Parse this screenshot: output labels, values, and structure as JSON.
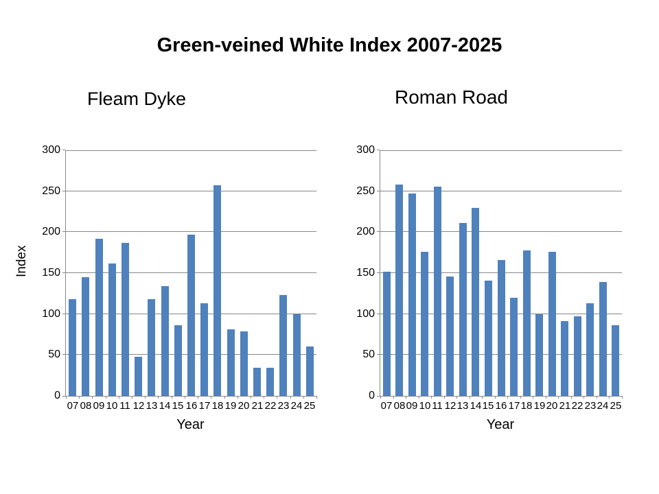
{
  "title": "Green-veined White Index 2007-2025",
  "colors": {
    "bar": "#4F81BD",
    "gridline": "#878787",
    "axis": "#878787",
    "text": "#000000",
    "background": "#FFFFFF"
  },
  "chart_data": [
    {
      "type": "bar",
      "title": "Fleam Dyke",
      "categories": [
        "07",
        "08",
        "09",
        "10",
        "11",
        "12",
        "13",
        "14",
        "15",
        "16",
        "17",
        "18",
        "19",
        "20",
        "21",
        "22",
        "23",
        "24",
        "25"
      ],
      "values": [
        118,
        145,
        192,
        162,
        187,
        48,
        118,
        134,
        86,
        197,
        113,
        257,
        81,
        79,
        34,
        34,
        123,
        100,
        60
      ],
      "xlabel": "Year",
      "ylabel": "Index",
      "ylim": [
        0,
        300
      ],
      "yticks": [
        0,
        50,
        100,
        150,
        200,
        250,
        300
      ],
      "grid": true,
      "legend": "none",
      "bar_color": "#4F81BD"
    },
    {
      "type": "bar",
      "title": "Roman Road",
      "categories": [
        "07",
        "08",
        "09",
        "10",
        "11",
        "12",
        "13",
        "14",
        "15",
        "16",
        "17",
        "18",
        "19",
        "20",
        "21",
        "22",
        "23",
        "24",
        "25"
      ],
      "values": [
        152,
        258,
        247,
        176,
        256,
        146,
        211,
        230,
        141,
        166,
        120,
        178,
        100,
        176,
        91,
        97,
        113,
        139,
        86
      ],
      "xlabel": "Year",
      "ylabel": "",
      "ylim": [
        0,
        300
      ],
      "yticks": [
        0,
        50,
        100,
        150,
        200,
        250,
        300
      ],
      "grid": true,
      "legend": "none",
      "bar_color": "#4F81BD"
    }
  ]
}
